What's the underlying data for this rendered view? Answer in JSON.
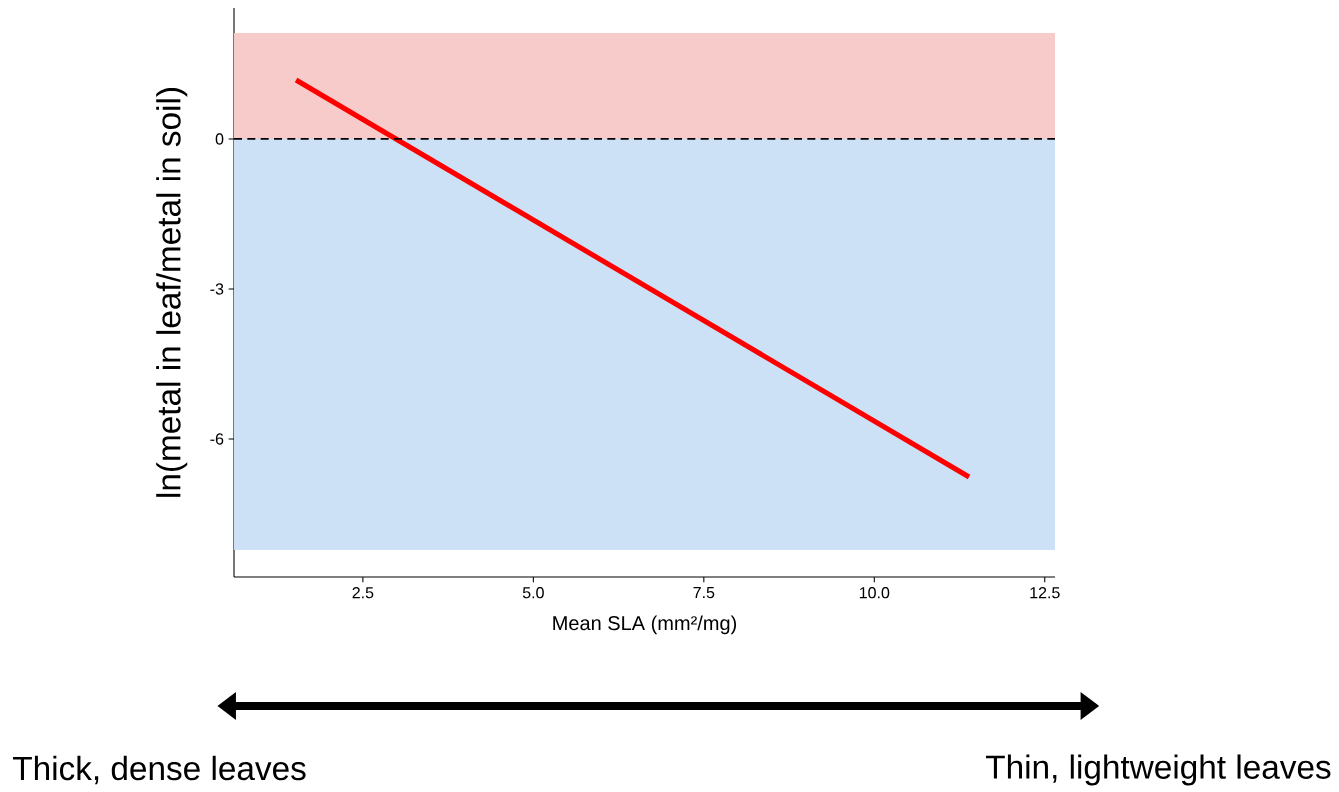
{
  "chart_data": {
    "type": "line",
    "xlabel": "Mean SLA (mm²/mg)",
    "ylabel": "ln(metal in leaf/metal in soil)",
    "series": [
      {
        "color": "#ff0000",
        "x": [
          1.52,
          11.39
        ],
        "values": [
          1.18,
          -6.76
        ]
      }
    ],
    "xlim": [
      0.61,
      12.65
    ],
    "ylim": [
      -8.76,
      2.62
    ],
    "xticks": [
      2.5,
      {
        "value": 5,
        "label": "5.0"
      },
      7.5,
      {
        "value": 10,
        "label": "10.0"
      },
      12.5
    ],
    "yticks": [
      -6,
      -3,
      0
    ],
    "ref_lines": [
      {
        "axis": "y",
        "value": 0,
        "color": "#000000",
        "line_style": "dashed"
      }
    ],
    "bands": [
      {
        "axis": "y",
        "from": 0,
        "to": 2.12,
        "color": "#f8cbcb"
      },
      {
        "axis": "y",
        "from": -8.22,
        "to": 0,
        "color": "#cce1f5"
      }
    ],
    "annotations": [
      "Thick, dense leaves",
      "Thin, lightweight leaves"
    ],
    "grid": false,
    "marker": "none",
    "line_style": "solid"
  }
}
